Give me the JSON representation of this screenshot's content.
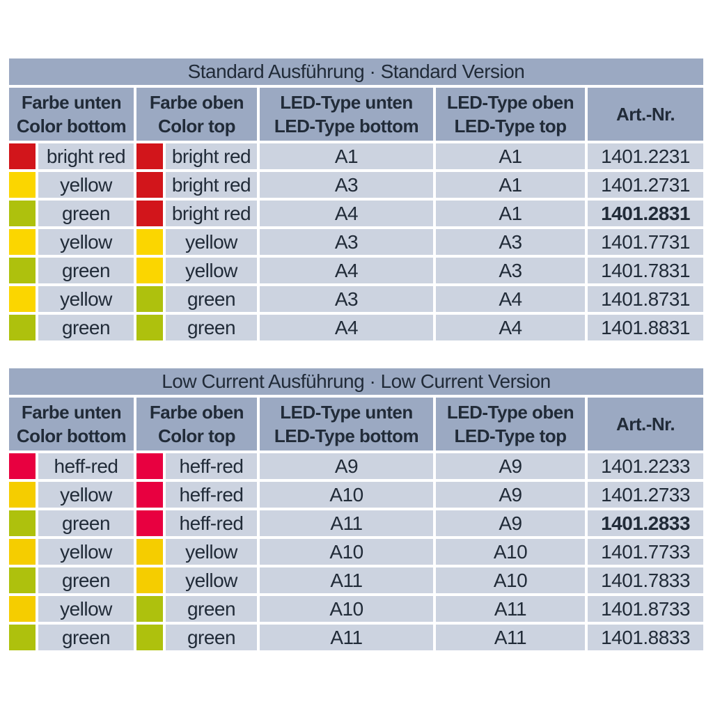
{
  "page": {
    "background": "#ffffff"
  },
  "styles": {
    "band_color": "#9ba9c2",
    "cell_color": "#ccd3e0",
    "text_color": "#212b38"
  },
  "tables": [
    {
      "title": "Standard Ausführung · Standard Version",
      "columns": [
        {
          "l1": "Farbe unten",
          "l2": "Color bottom"
        },
        {
          "l1": "Farbe oben",
          "l2": "Color top"
        },
        {
          "l1": "LED-Type unten",
          "l2": "LED-Type bottom"
        },
        {
          "l1": "LED-Type oben",
          "l2": "LED-Type top"
        },
        {
          "l1": "Art.-Nr.",
          "l2": ""
        }
      ],
      "rows": [
        {
          "c1": {
            "label": "bright red",
            "color": "#d2151b"
          },
          "c2": {
            "label": "bright red",
            "color": "#d2151b"
          },
          "led_bottom": "A1",
          "led_top": "A1",
          "art": "1401.2231",
          "art_weight": "normal"
        },
        {
          "c1": {
            "label": "yellow",
            "color": "#fbd600"
          },
          "c2": {
            "label": "bright red",
            "color": "#d2151b"
          },
          "led_bottom": "A3",
          "led_top": "A1",
          "art": "1401.2731",
          "art_weight": "normal"
        },
        {
          "c1": {
            "label": "green",
            "color": "#aec10d"
          },
          "c2": {
            "label": "bright red",
            "color": "#d2151b"
          },
          "led_bottom": "A4",
          "led_top": "A1",
          "art": "1401.2831",
          "art_weight": "bold"
        },
        {
          "c1": {
            "label": "yellow",
            "color": "#fbd600"
          },
          "c2": {
            "label": "yellow",
            "color": "#fbd600"
          },
          "led_bottom": "A3",
          "led_top": "A3",
          "art": "1401.7731",
          "art_weight": "normal"
        },
        {
          "c1": {
            "label": "green",
            "color": "#aec10d"
          },
          "c2": {
            "label": "yellow",
            "color": "#fbd600"
          },
          "led_bottom": "A4",
          "led_top": "A3",
          "art": "1401.7831",
          "art_weight": "normal"
        },
        {
          "c1": {
            "label": "yellow",
            "color": "#fbd600"
          },
          "c2": {
            "label": "green",
            "color": "#aec10d"
          },
          "led_bottom": "A3",
          "led_top": "A4",
          "art": "1401.8731",
          "art_weight": "normal"
        },
        {
          "c1": {
            "label": "green",
            "color": "#aec10d"
          },
          "c2": {
            "label": "green",
            "color": "#aec10d"
          },
          "led_bottom": "A4",
          "led_top": "A4",
          "art": "1401.8831",
          "art_weight": "normal"
        }
      ]
    },
    {
      "title": "Low Current Ausführung · Low Current Version",
      "columns": [
        {
          "l1": "Farbe unten",
          "l2": "Color bottom"
        },
        {
          "l1": "Farbe oben",
          "l2": "Color top"
        },
        {
          "l1": "LED-Type unten",
          "l2": "LED-Type bottom"
        },
        {
          "l1": "LED-Type oben",
          "l2": "LED-Type top"
        },
        {
          "l1": "Art.-Nr.",
          "l2": ""
        }
      ],
      "rows": [
        {
          "c1": {
            "label": "heff-red",
            "color": "#e80040"
          },
          "c2": {
            "label": "heff-red",
            "color": "#e80040"
          },
          "led_bottom": "A9",
          "led_top": "A9",
          "art": "1401.2233",
          "art_weight": "normal"
        },
        {
          "c1": {
            "label": "yellow",
            "color": "#f5cd00"
          },
          "c2": {
            "label": "heff-red",
            "color": "#e80040"
          },
          "led_bottom": "A10",
          "led_top": "A9",
          "art": "1401.2733",
          "art_weight": "normal"
        },
        {
          "c1": {
            "label": "green",
            "color": "#aec10d"
          },
          "c2": {
            "label": "heff-red",
            "color": "#e80040"
          },
          "led_bottom": "A11",
          "led_top": "A9",
          "art": "1401.2833",
          "art_weight": "bold"
        },
        {
          "c1": {
            "label": "yellow",
            "color": "#f5cd00"
          },
          "c2": {
            "label": "yellow",
            "color": "#f5cd00"
          },
          "led_bottom": "A10",
          "led_top": "A10",
          "art": "1401.7733",
          "art_weight": "normal"
        },
        {
          "c1": {
            "label": "green",
            "color": "#aec10d"
          },
          "c2": {
            "label": "yellow",
            "color": "#f5cd00"
          },
          "led_bottom": "A11",
          "led_top": "A10",
          "art": "1401.7833",
          "art_weight": "normal"
        },
        {
          "c1": {
            "label": "yellow",
            "color": "#f5cd00"
          },
          "c2": {
            "label": "green",
            "color": "#aec10d"
          },
          "led_bottom": "A10",
          "led_top": "A11",
          "art": "1401.8733",
          "art_weight": "normal"
        },
        {
          "c1": {
            "label": "green",
            "color": "#aec10d"
          },
          "c2": {
            "label": "green",
            "color": "#aec10d"
          },
          "led_bottom": "A11",
          "led_top": "A11",
          "art": "1401.8833",
          "art_weight": "normal"
        }
      ]
    }
  ]
}
